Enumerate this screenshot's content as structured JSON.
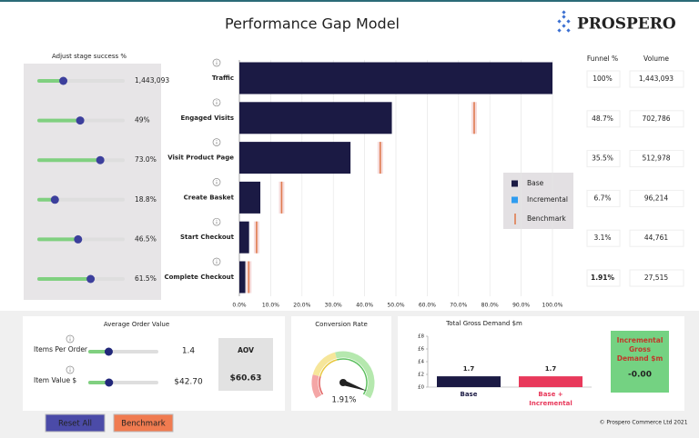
{
  "header": {
    "title": "Performance Gap Model",
    "logo": "PROSPERO"
  },
  "stage_panel": {
    "title": "Adjust stage success %",
    "sliders": [
      {
        "value": 1443093,
        "label": "1,443,093",
        "range": [
          0,
          5000000
        ]
      },
      {
        "value": 49,
        "label": "49%",
        "range": [
          0,
          100
        ]
      },
      {
        "value": 73,
        "label": "73.0%",
        "range": [
          0,
          100
        ]
      },
      {
        "value": 18.8,
        "label": "18.8%",
        "range": [
          0,
          100
        ]
      },
      {
        "value": 46.5,
        "label": "46.5%",
        "range": [
          0,
          100
        ]
      },
      {
        "value": 61.5,
        "label": "61.5%",
        "range": [
          0,
          100
        ]
      }
    ]
  },
  "funnel_table": {
    "headers": [
      "Funnel %",
      "Volume"
    ],
    "rows": [
      [
        "100%",
        "1,443,093"
      ],
      [
        "48.7%",
        "702,786"
      ],
      [
        "35.5%",
        "512,978"
      ],
      [
        "6.7%",
        "96,214"
      ],
      [
        "3.1%",
        "44,761"
      ],
      [
        "1.91%",
        "27,515"
      ]
    ]
  },
  "aov_panel": {
    "title": "Average Order Value",
    "inputs": [
      {
        "label": "Items Per Order",
        "value": 1.4,
        "range": [
          0,
          5
        ]
      },
      {
        "label": "Item Value $",
        "value": 42.7,
        "value_label": "$42.70",
        "range": [
          0,
          150
        ]
      }
    ],
    "result": {
      "label": "AOV",
      "value": "$60.63"
    }
  },
  "kpi": {
    "title": "Incremental Gross Demand $m",
    "value": "-0.00"
  },
  "buttons": [
    "Reset All",
    "Benchmark"
  ],
  "footer": "© Prospero Commerce Ltd 2021",
  "chart_data": [
    {
      "type": "funnel",
      "orientation": "horizontal",
      "categories": [
        "Traffic",
        "Engaged Visits",
        "Visit Product Page",
        "Create Basket",
        "Start Checkout",
        "Complete Checkout"
      ],
      "series": [
        {
          "name": "Base",
          "color": "#1b1a44",
          "style": "bar",
          "values": [
            100,
            48.7,
            35.5,
            6.7,
            3.1,
            1.91
          ]
        },
        {
          "name": "Incremental",
          "color": "#2f9cf0",
          "style": "bar",
          "values": [
            0,
            0,
            0,
            0,
            0,
            0
          ]
        },
        {
          "name": "Benchmark",
          "color": "#e07b4f",
          "style": "tick",
          "values": [
            null,
            75,
            45,
            13.5,
            5.5,
            3
          ]
        }
      ],
      "xlim": [
        0,
        100
      ],
      "xticks": [
        {
          "value": 0,
          "label": "0.0%"
        },
        {
          "value": 10,
          "label": "10.0%"
        },
        {
          "value": 20,
          "label": "20.0%"
        },
        {
          "value": 30,
          "label": "30.0%"
        },
        {
          "value": 40,
          "label": "40.0%"
        },
        {
          "value": 50,
          "label": "50.0%"
        },
        {
          "value": 60,
          "label": "60.0%"
        },
        {
          "value": 70,
          "label": "70.0%"
        },
        {
          "value": 80,
          "label": "80.0%"
        },
        {
          "value": 90,
          "label": "90.0%"
        },
        {
          "value": 100,
          "label": "100.0%"
        }
      ],
      "grid": true,
      "legend": "right"
    },
    {
      "type": "gauge",
      "title": "Conversion Rate",
      "value": 1.91,
      "value_label": "1.91%",
      "ylim": [
        0,
        2
      ]
    },
    {
      "type": "bar",
      "title": "Total Gross Demand $m",
      "categories": [
        "Base",
        "Base + Incremental"
      ],
      "values": [
        1.7,
        1.7
      ],
      "colors": [
        "#1b1a44",
        "#e8395b"
      ],
      "ylim": [
        0,
        8
      ],
      "yticks": [
        {
          "value": 0,
          "label": "£0"
        },
        {
          "value": 2,
          "label": "£2"
        },
        {
          "value": 4,
          "label": "£4"
        },
        {
          "value": 6,
          "label": "£6"
        },
        {
          "value": 8,
          "label": "£8"
        }
      ]
    }
  ]
}
